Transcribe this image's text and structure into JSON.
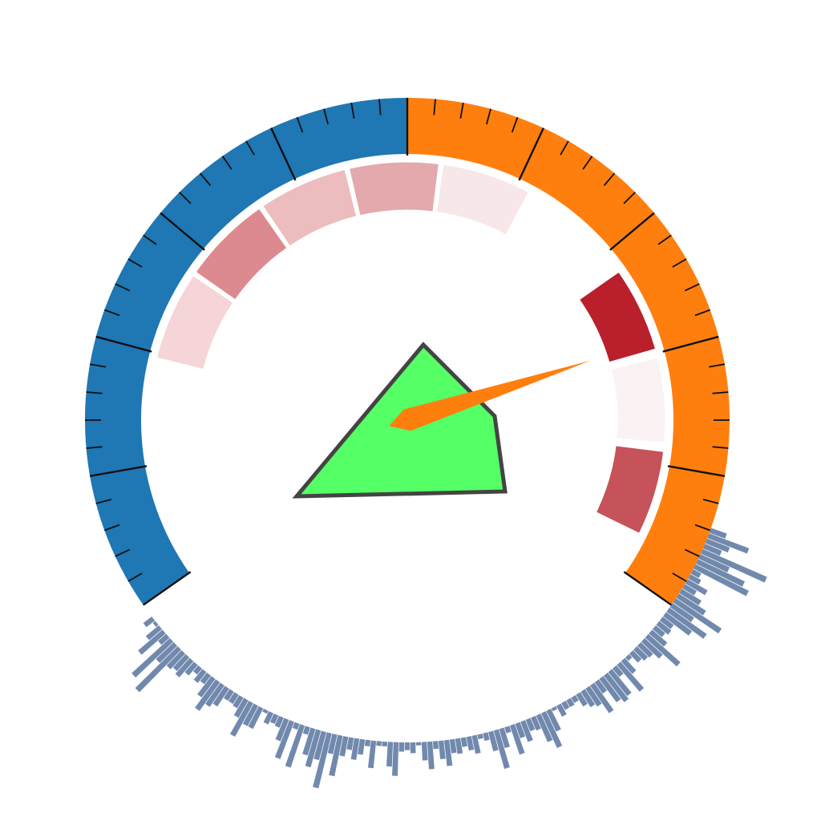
{
  "chart_data": {
    "type": "gauge",
    "title": "",
    "outer_ring": {
      "range_degrees": [
        -125,
        125
      ],
      "segments": [
        {
          "from_deg": -125,
          "to_deg": 0,
          "color": "#1f77b4"
        },
        {
          "from_deg": 0,
          "to_deg": 125,
          "color": "#ff7f0e"
        }
      ],
      "minor_tick_step_deg": 5,
      "major_tick_step_deg": 25
    },
    "inner_bands": [
      {
        "from_deg": -76,
        "to_deg": -56,
        "color": "#f5d5d8"
      },
      {
        "from_deg": -55,
        "to_deg": -35,
        "color": "#dc8a8f"
      },
      {
        "from_deg": -34,
        "to_deg": -14,
        "color": "#ecbcbf"
      },
      {
        "from_deg": -13,
        "to_deg": 7,
        "color": "#e3a9ad"
      },
      {
        "from_deg": 8,
        "to_deg": 28,
        "color": "#f8e7e8"
      },
      {
        "from_deg": 55,
        "to_deg": 74,
        "color": "#b9202b"
      },
      {
        "from_deg": 76,
        "to_deg": 95,
        "color": "#fbf3f3"
      },
      {
        "from_deg": 97,
        "to_deg": 116,
        "color": "#c6525a"
      }
    ],
    "needle": {
      "angle_deg": 72,
      "color": "#ff7f0e"
    },
    "center_polygon": {
      "fill": "#55ff66",
      "stroke": "#444444",
      "points": [
        [
          -138,
          95
        ],
        [
          20,
          -94
        ],
        [
          109,
          -5
        ],
        [
          122,
          89
        ]
      ]
    },
    "radial_bars": {
      "color": "#7189ad",
      "from_deg": 110,
      "to_deg": 232,
      "step_deg": 1,
      "values": [
        10,
        27,
        15,
        11,
        45,
        20,
        33,
        38,
        5,
        7,
        14,
        8,
        14,
        20,
        35,
        16,
        29,
        20,
        8,
        9,
        7,
        12,
        27,
        15,
        10,
        9,
        7,
        2,
        10,
        22,
        6,
        19,
        21,
        18,
        8,
        21,
        13,
        11,
        8,
        3,
        4,
        4,
        7,
        1,
        14,
        24,
        18,
        8,
        7,
        13,
        9,
        19,
        3,
        12,
        25,
        12,
        4,
        2,
        11,
        8,
        5,
        9,
        8,
        16,
        11,
        4,
        17,
        11,
        1,
        6,
        4,
        5,
        21,
        15,
        2,
        2,
        17,
        3,
        9,
        13,
        7,
        12,
        26,
        12,
        36,
        18,
        24,
        17,
        4,
        28,
        3,
        25,
        14,
        6,
        5,
        7,
        1,
        14,
        14,
        24,
        12,
        7,
        6,
        6,
        13,
        16,
        22,
        14,
        6,
        8,
        4,
        8,
        13,
        11,
        13,
        38,
        15,
        33,
        6,
        20,
        10,
        1,
        6
      ]
    }
  }
}
